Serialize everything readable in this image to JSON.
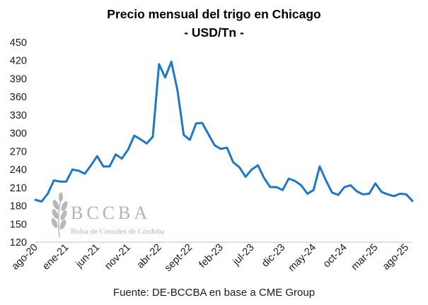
{
  "chart_data": {
    "type": "line",
    "title": "Precio mensual del trigo en Chicago",
    "subtitle": "- USD/Tn -",
    "xlabel": "",
    "ylabel": "",
    "ylim": [
      120,
      450
    ],
    "yticks": [
      120,
      150,
      180,
      210,
      240,
      270,
      300,
      330,
      360,
      390,
      420,
      450
    ],
    "grid": false,
    "legend": "none",
    "x_tick_labels": [
      "ago-20",
      "ene-21",
      "jun-21",
      "nov-21",
      "abr-22",
      "sept-22",
      "feb-23",
      "jul-23",
      "dic-23",
      "may-24",
      "oct-24",
      "mar-25",
      "ago-25"
    ],
    "series": [
      {
        "color": "#1f77c8",
        "values": [
          190,
          187,
          200,
          222,
          220,
          220,
          240,
          238,
          233,
          247,
          262,
          245,
          245,
          265,
          258,
          273,
          296,
          290,
          283,
          294,
          414,
          392,
          418,
          370,
          297,
          289,
          316,
          317,
          298,
          280,
          274,
          276,
          252,
          244,
          228,
          240,
          247,
          226,
          211,
          211,
          206,
          225,
          221,
          214,
          200,
          206,
          245,
          222,
          202,
          198,
          211,
          214,
          204,
          199,
          200,
          217,
          203,
          199,
          196,
          200,
          199,
          188
        ]
      }
    ]
  },
  "source_note": "Fuente: DE-BCCBA en base a CME Group",
  "watermark": {
    "name": "BCCBA",
    "subtitle": "Bolsa de Cereales de Córdoba",
    "logo_icon": "wheat-icon"
  }
}
